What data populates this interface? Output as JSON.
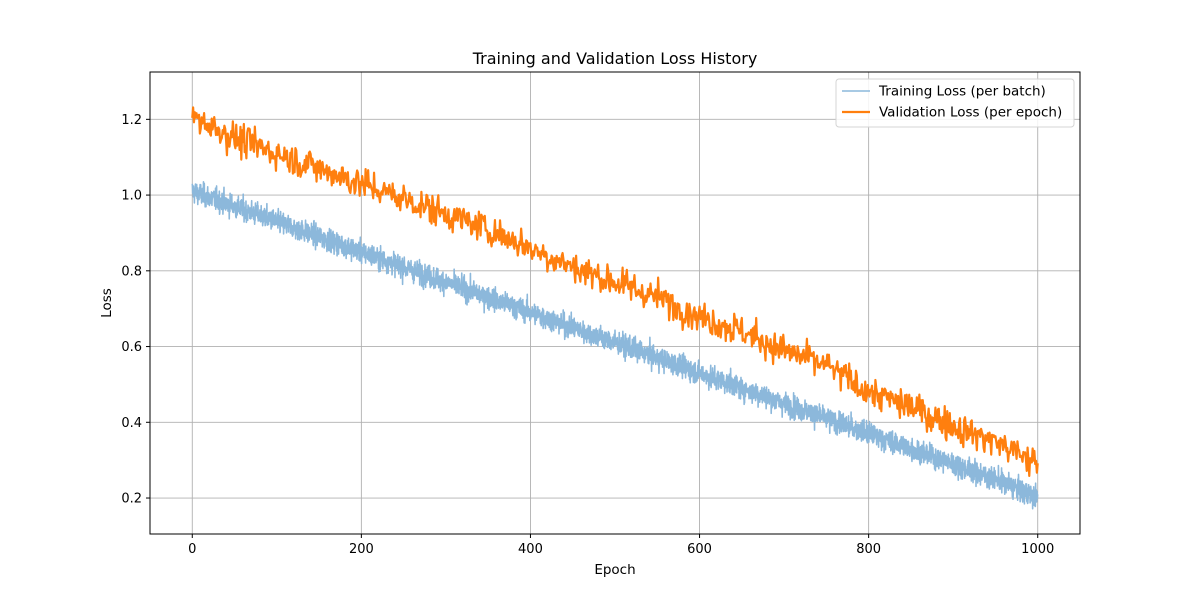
{
  "chart_data": {
    "type": "line",
    "title": "Training and Validation Loss History",
    "xlabel": "Epoch",
    "ylabel": "Loss",
    "xlim": [
      -50,
      1050
    ],
    "ylim": [
      0.105,
      1.325
    ],
    "x_ticks": [
      0,
      200,
      400,
      600,
      800,
      1000
    ],
    "y_ticks": [
      0.2,
      0.4,
      0.6,
      0.8,
      1.0,
      1.2
    ],
    "x_tick_labels": [
      "0",
      "200",
      "400",
      "600",
      "800",
      "1000"
    ],
    "y_tick_labels": [
      "0.2",
      "0.4",
      "0.6",
      "0.8",
      "1.0",
      "1.2"
    ],
    "grid": true,
    "legend_position": "top-right",
    "series": [
      {
        "name": "Training Loss (per batch)",
        "color": "#8cb8db",
        "x": [
          0,
          50,
          100,
          150,
          200,
          250,
          300,
          350,
          400,
          450,
          500,
          550,
          600,
          650,
          700,
          750,
          800,
          850,
          900,
          950,
          1000
        ],
        "values": [
          1.01,
          0.97,
          0.93,
          0.89,
          0.85,
          0.81,
          0.77,
          0.73,
          0.69,
          0.65,
          0.61,
          0.57,
          0.53,
          0.49,
          0.45,
          0.41,
          0.37,
          0.33,
          0.29,
          0.25,
          0.2
        ],
        "noise": 0.025
      },
      {
        "name": "Validation Loss (per epoch)",
        "color": "#ff7f0e",
        "x": [
          0,
          50,
          100,
          150,
          200,
          250,
          300,
          350,
          400,
          450,
          500,
          550,
          600,
          650,
          700,
          750,
          800,
          850,
          900,
          950,
          1000
        ],
        "values": [
          1.21,
          1.15,
          1.11,
          1.07,
          1.03,
          0.99,
          0.95,
          0.91,
          0.86,
          0.81,
          0.77,
          0.73,
          0.68,
          0.64,
          0.59,
          0.55,
          0.48,
          0.44,
          0.39,
          0.35,
          0.29
        ],
        "noise": 0.035
      }
    ]
  }
}
